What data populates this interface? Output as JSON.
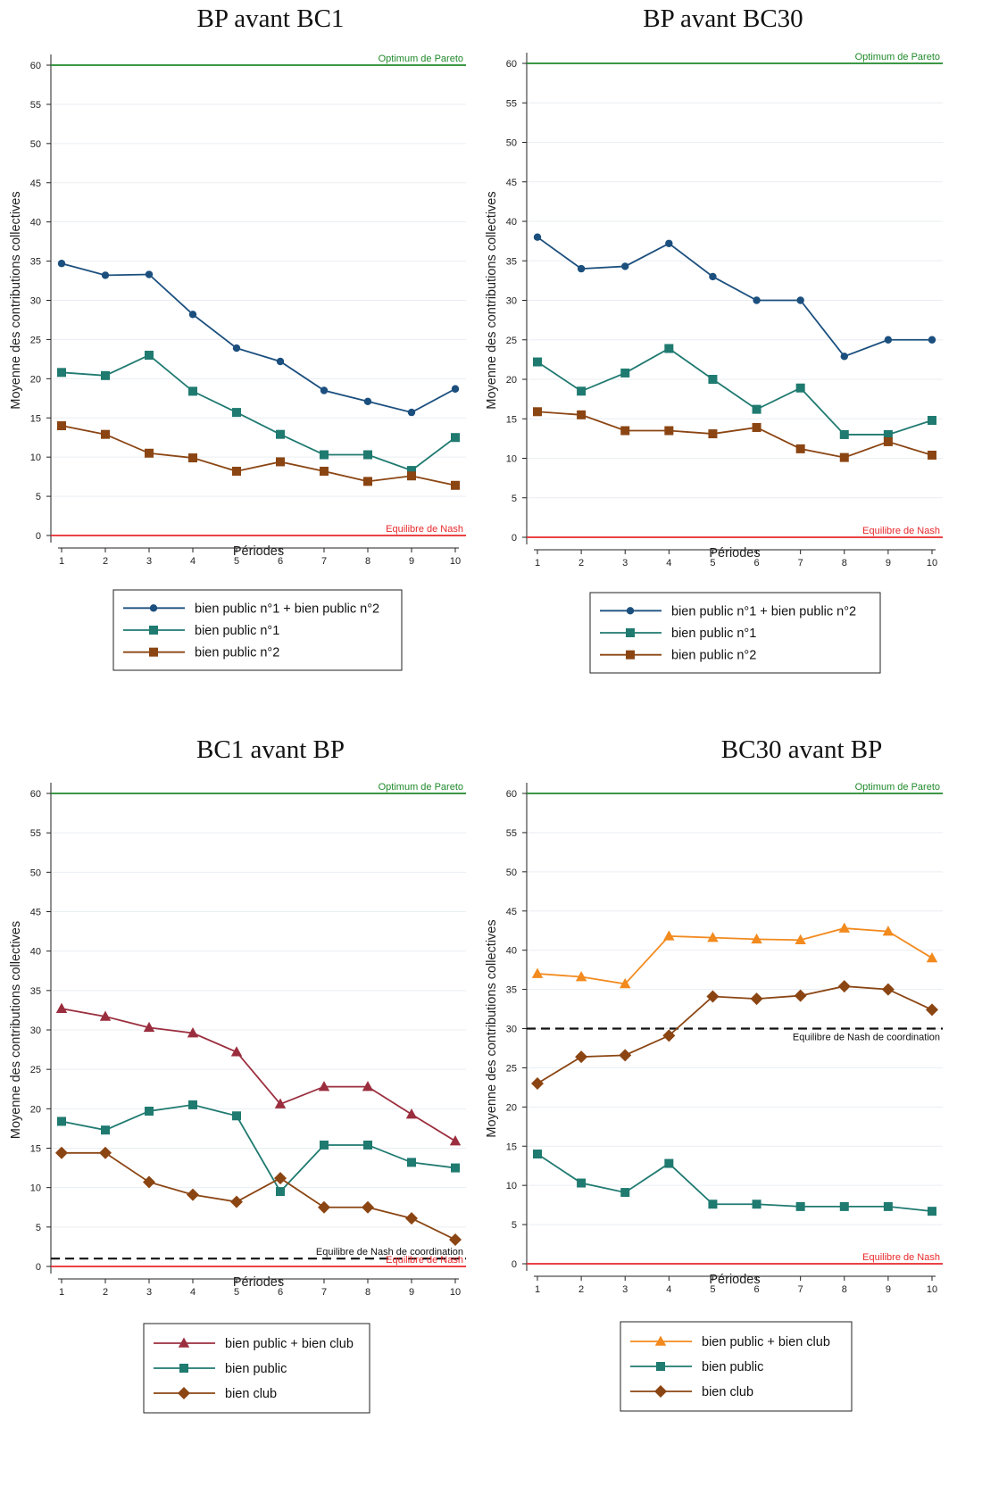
{
  "chart_data": [
    {
      "type": "line",
      "title": "BP avant BC1",
      "xlabel": "Périodes",
      "ylabel": "Moyenne des contributions collectives",
      "x": [
        1,
        2,
        3,
        4,
        5,
        6,
        7,
        8,
        9,
        10
      ],
      "ylim": [
        0,
        60
      ],
      "yticks": [
        0,
        5,
        10,
        15,
        20,
        25,
        30,
        35,
        40,
        45,
        50,
        55,
        60
      ],
      "grid": true,
      "legend_position": "bottom",
      "reference_lines": [
        {
          "label": "Optimum de Pareto",
          "y": 60,
          "color": "#1f8a2a",
          "style": "solid"
        },
        {
          "label": "Equilibre de Nash",
          "y": 0,
          "color": "#e8282b",
          "style": "solid"
        }
      ],
      "series": [
        {
          "name": "bien public n°1 + bien public n°2",
          "color": "#1b4f7e",
          "marker": "circle",
          "values": [
            34.7,
            33.2,
            33.3,
            28.2,
            23.9,
            22.2,
            18.5,
            17.1,
            15.7,
            18.7
          ]
        },
        {
          "name": "bien public n°1",
          "color": "#1f7a70",
          "marker": "square",
          "values": [
            20.8,
            20.4,
            23.0,
            18.4,
            15.7,
            12.9,
            10.3,
            10.3,
            8.3,
            12.5
          ]
        },
        {
          "name": "bien public n°2",
          "color": "#8b4513",
          "marker": "square",
          "values": [
            14.0,
            12.9,
            10.5,
            9.9,
            8.2,
            9.4,
            8.2,
            6.9,
            7.6,
            6.4
          ]
        }
      ]
    },
    {
      "type": "line",
      "title": "BP avant BC30",
      "xlabel": "Périodes",
      "ylabel": "Moyenne des contributions collectives",
      "x": [
        1,
        2,
        3,
        4,
        5,
        6,
        7,
        8,
        9,
        10
      ],
      "ylim": [
        0,
        60
      ],
      "yticks": [
        0,
        5,
        10,
        15,
        20,
        25,
        30,
        35,
        40,
        45,
        50,
        55,
        60
      ],
      "grid": true,
      "legend_position": "bottom",
      "reference_lines": [
        {
          "label": "Optimum de Pareto",
          "y": 60,
          "color": "#1f8a2a",
          "style": "solid"
        },
        {
          "label": "Equilibre de Nash",
          "y": 0,
          "color": "#e8282b",
          "style": "solid"
        }
      ],
      "series": [
        {
          "name": "bien public n°1 + bien public n°2",
          "color": "#1b4f7e",
          "marker": "circle",
          "values": [
            38.0,
            34.0,
            34.3,
            37.2,
            33.0,
            30.0,
            30.0,
            22.9,
            25.0,
            25.0
          ]
        },
        {
          "name": "bien public n°1",
          "color": "#1f7a70",
          "marker": "square",
          "values": [
            22.2,
            18.5,
            20.8,
            23.9,
            20.0,
            16.2,
            18.9,
            13.0,
            13.0,
            14.8
          ]
        },
        {
          "name": "bien public n°2",
          "color": "#8b4513",
          "marker": "square",
          "values": [
            15.9,
            15.5,
            13.5,
            13.5,
            13.1,
            13.9,
            11.2,
            10.1,
            12.1,
            10.4
          ]
        }
      ]
    },
    {
      "type": "line",
      "title": "BC1 avant BP",
      "xlabel": "Périodes",
      "ylabel": "Moyenne des contributions collectives",
      "x": [
        1,
        2,
        3,
        4,
        5,
        6,
        7,
        8,
        9,
        10
      ],
      "ylim": [
        0,
        60
      ],
      "yticks": [
        0,
        5,
        10,
        15,
        20,
        25,
        30,
        35,
        40,
        45,
        50,
        55,
        60
      ],
      "grid": true,
      "legend_position": "bottom",
      "reference_lines": [
        {
          "label": "Optimum de Pareto",
          "y": 60,
          "color": "#1f8a2a",
          "style": "solid"
        },
        {
          "label": "Equilibre de Nash de coordination",
          "y": 1,
          "color": "#111111",
          "style": "dashed"
        },
        {
          "label": "Equilibre de Nash",
          "y": 0,
          "color": "#e8282b",
          "style": "solid"
        }
      ],
      "series": [
        {
          "name": "bien public + bien club",
          "color": "#9b2e3e",
          "marker": "triangle",
          "values": [
            32.7,
            31.7,
            30.3,
            29.6,
            27.2,
            20.6,
            22.8,
            22.8,
            19.3,
            15.9
          ]
        },
        {
          "name": "bien public",
          "color": "#1f7a70",
          "marker": "square",
          "values": [
            18.4,
            17.3,
            19.7,
            20.5,
            19.1,
            9.5,
            15.4,
            15.4,
            13.2,
            12.5
          ]
        },
        {
          "name": "bien club",
          "color": "#8b4513",
          "marker": "diamond",
          "values": [
            14.4,
            14.4,
            10.7,
            9.1,
            8.2,
            11.2,
            7.5,
            7.5,
            6.1,
            3.4
          ]
        }
      ]
    },
    {
      "type": "line",
      "title": "BC30 avant BP",
      "xlabel": "Périodes",
      "ylabel": "Moyenne des contributions collectives",
      "x": [
        1,
        2,
        3,
        4,
        5,
        6,
        7,
        8,
        9,
        10
      ],
      "ylim": [
        0,
        60
      ],
      "yticks": [
        0,
        5,
        10,
        15,
        20,
        25,
        30,
        35,
        40,
        45,
        50,
        55,
        60
      ],
      "grid": true,
      "legend_position": "bottom",
      "reference_lines": [
        {
          "label": "Optimum de Pareto",
          "y": 60,
          "color": "#1f8a2a",
          "style": "solid"
        },
        {
          "label": "Equilibre de Nash de coordination",
          "y": 30,
          "color": "#111111",
          "style": "dashed"
        },
        {
          "label": "Equilibre de Nash",
          "y": 0,
          "color": "#e8282b",
          "style": "solid"
        }
      ],
      "series": [
        {
          "name": "bien public + bien club",
          "color": "#f28a1e",
          "marker": "triangle",
          "values": [
            37.0,
            36.6,
            35.7,
            41.8,
            41.6,
            41.4,
            41.3,
            42.8,
            42.4,
            39.0
          ]
        },
        {
          "name": "bien public",
          "color": "#1f7a70",
          "marker": "square",
          "values": [
            14.0,
            10.3,
            9.1,
            12.8,
            7.6,
            7.6,
            7.3,
            7.3,
            7.3,
            6.7
          ]
        },
        {
          "name": "bien club",
          "color": "#8b4513",
          "marker": "diamond",
          "values": [
            23.0,
            26.4,
            26.6,
            29.1,
            34.1,
            33.8,
            34.2,
            35.4,
            35.0,
            32.4
          ]
        }
      ]
    }
  ]
}
